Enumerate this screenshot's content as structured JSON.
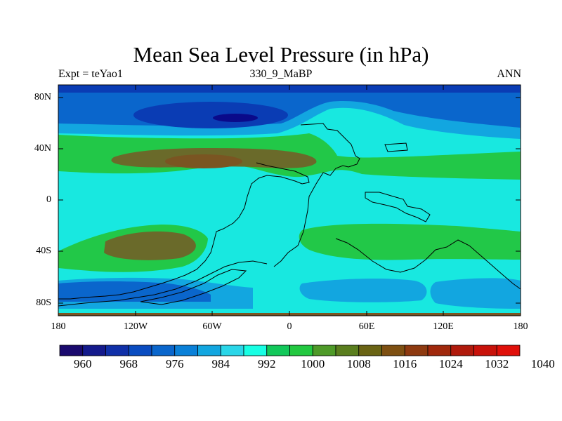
{
  "title": "Mean Sea Level Pressure (in hPa)",
  "subtitle_left": "Expt = teYao1",
  "subtitle_center": "330_9_MaBP",
  "subtitle_right": "ANN",
  "lat_labels": [
    "80N",
    "40N",
    "0",
    "40S",
    "80S"
  ],
  "lon_labels": [
    "180",
    "120W",
    "60W",
    "0",
    "60E",
    "120E",
    "180"
  ],
  "colorbar": {
    "labels": [
      "960",
      "968",
      "976",
      "984",
      "992",
      "1000",
      "1008",
      "1016",
      "1024",
      "1032",
      "1040"
    ],
    "colors": [
      "#1a0a6e",
      "#141a8c",
      "#1030a8",
      "#0a4cc0",
      "#0a66cc",
      "#0a80d8",
      "#12a6e0",
      "#2ad6e8",
      "#18ffe4",
      "#12c85a",
      "#22c840",
      "#4e9a28",
      "#5a7e1e",
      "#6a6414",
      "#7e5012",
      "#8e3a10",
      "#a0280c",
      "#b01a0c",
      "#c8120a",
      "#e0100a"
    ]
  },
  "colors": {
    "deep_low": "#0a0a8a",
    "low_1": "#0a3cb4",
    "low_2": "#0a66cc",
    "low_3": "#12a6e0",
    "base": "#18e8e0",
    "high_1": "#22c848",
    "high_2": "#6a6a2a",
    "high_3": "#7a5522"
  }
}
